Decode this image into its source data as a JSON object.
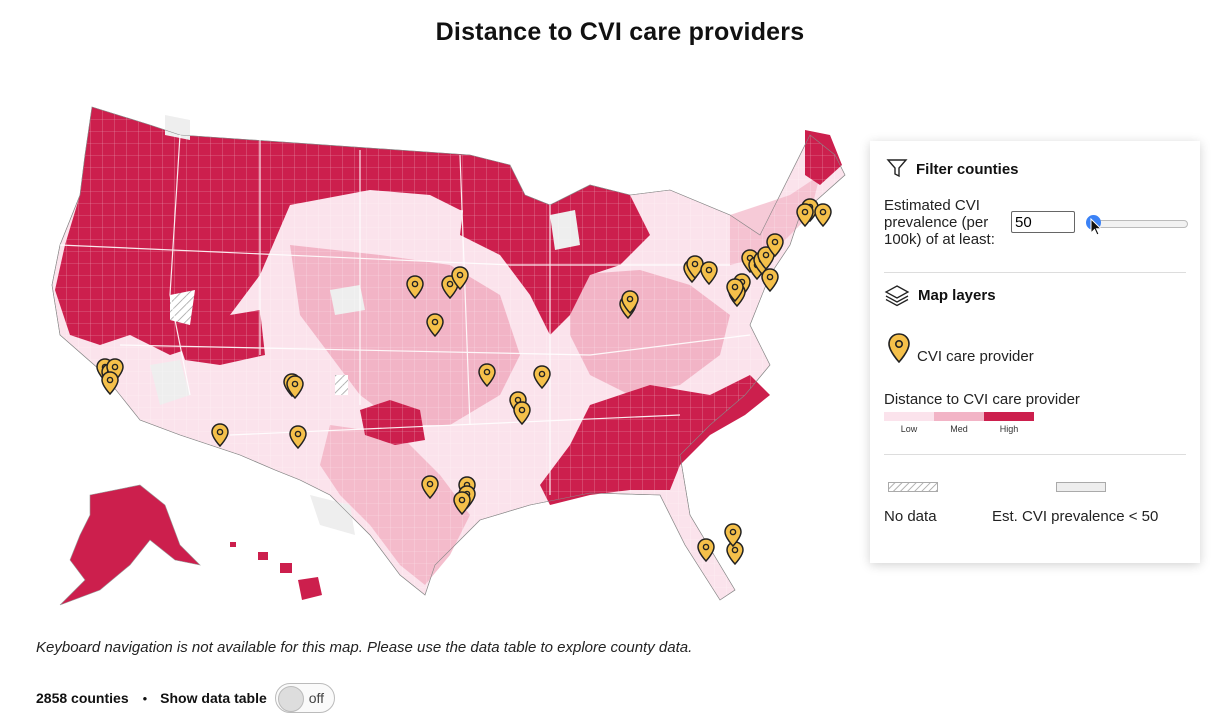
{
  "title": "Distance to CVI care providers",
  "panel": {
    "filter_title": "Filter counties",
    "prevalence_label_lines": [
      "Estimated CVI",
      "prevalence (per",
      "100k) of at least:"
    ],
    "prevalence_value": "50",
    "slider_level": 0,
    "layers_title": "Map layers",
    "provider_label": "CVI care provider",
    "distance_label": "Distance to CVI care provider",
    "distance_scale": [
      "Low",
      "Med",
      "High"
    ],
    "no_data_label": "No data",
    "low_prevalence_label": "Est. CVI prevalence < 50"
  },
  "note": "Keyboard navigation is not available for this map. Please use the data table to explore county data.",
  "footer": {
    "count": "2858 counties",
    "separator": "•",
    "show_table_label": "Show data table",
    "toggle_text": "off"
  },
  "colors": {
    "high": "#cc1f4d",
    "med": "#f2b4c6",
    "low": "#fbe3ec",
    "no_prevalence": "#eeeeee",
    "provider_pin": "#f5c04a"
  },
  "icons": [
    "filter-icon",
    "layers-icon",
    "map-pin-icon",
    "toggle-switch"
  ],
  "providers_count": 40
}
